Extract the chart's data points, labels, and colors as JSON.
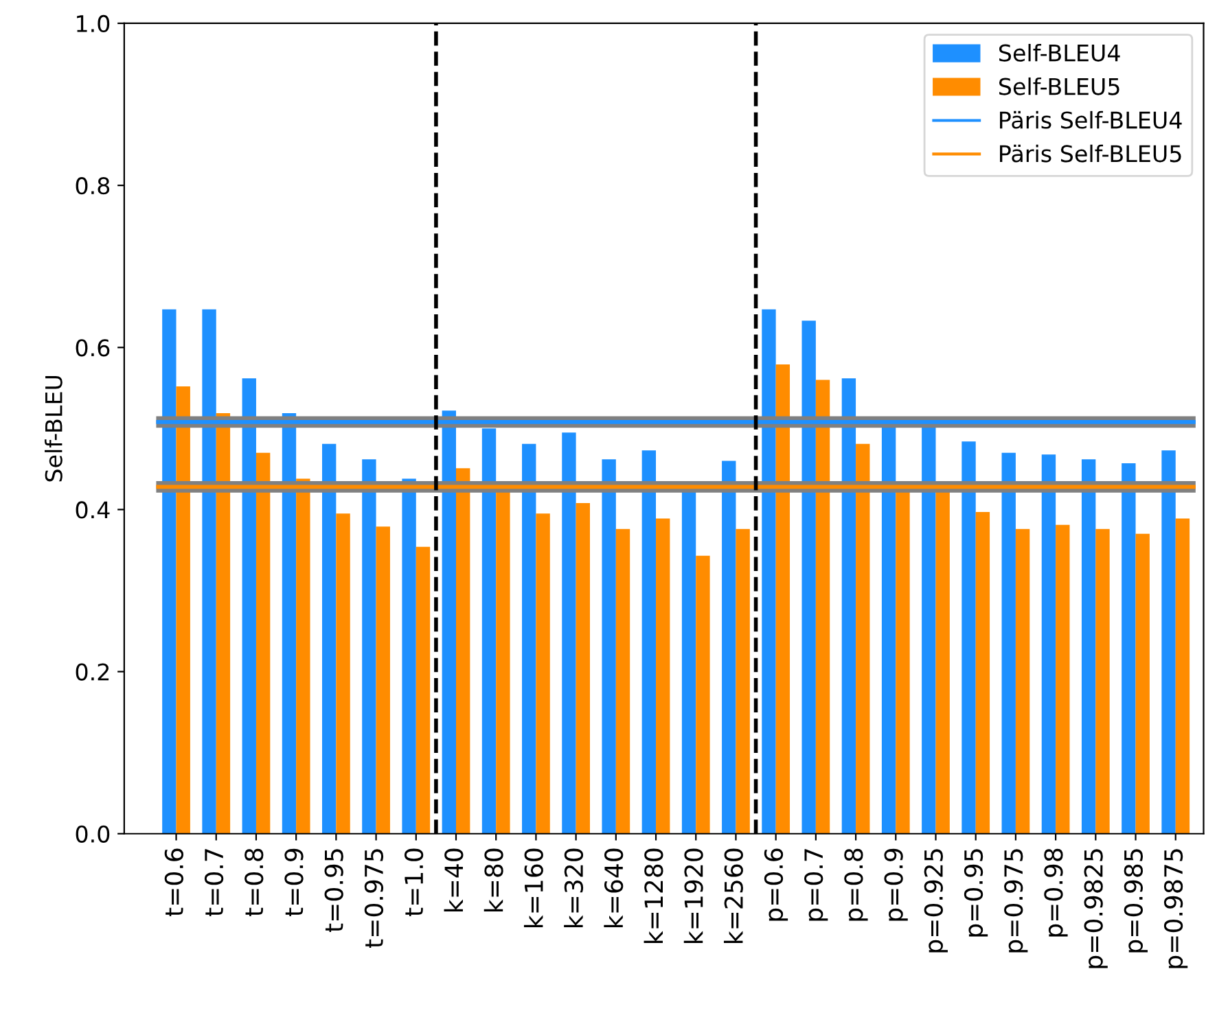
{
  "chart_data": {
    "type": "bar",
    "ylabel": "Self-BLEU",
    "categories": [
      "t=0.6",
      "t=0.7",
      "t=0.8",
      "t=0.9",
      "t=0.95",
      "t=0.975",
      "t=1.0",
      "k=40",
      "k=80",
      "k=160",
      "k=320",
      "k=640",
      "k=1280",
      "k=1920",
      "k=2560",
      "p=0.6",
      "p=0.7",
      "p=0.8",
      "p=0.9",
      "p=0.925",
      "p=0.95",
      "p=0.975",
      "p=0.98",
      "p=0.9825",
      "p=0.985",
      "p=0.9875"
    ],
    "series": [
      {
        "name": "Self-BLEU4",
        "color": "#1e90ff",
        "values": [
          0.647,
          0.647,
          0.562,
          0.519,
          0.481,
          0.462,
          0.438,
          0.522,
          0.5,
          0.481,
          0.495,
          0.462,
          0.473,
          0.425,
          0.46,
          0.647,
          0.633,
          0.562,
          0.505,
          0.505,
          0.484,
          0.47,
          0.468,
          0.462,
          0.457,
          0.473
        ]
      },
      {
        "name": "Self-BLEU5",
        "color": "#ff8c00",
        "values": [
          0.552,
          0.519,
          0.47,
          0.438,
          0.395,
          0.379,
          0.354,
          0.451,
          0.425,
          0.395,
          0.408,
          0.376,
          0.389,
          0.343,
          0.376,
          0.579,
          0.56,
          0.481,
          0.425,
          0.425,
          0.397,
          0.376,
          0.381,
          0.376,
          0.37,
          0.389
        ]
      }
    ],
    "ref_lines": [
      {
        "axis": "y",
        "value": 0.508,
        "color": "#808080",
        "line_style": "solid"
      },
      {
        "axis": "y",
        "value": 0.428,
        "color": "#808080",
        "line_style": "solid"
      },
      {
        "axis": "y",
        "value": 0.508,
        "label": "Päris Self-BLEU4",
        "color": "#1e90ff",
        "line_style": "solid"
      },
      {
        "axis": "y",
        "value": 0.428,
        "label": "Päris Self-BLEU5",
        "color": "#ff8c00",
        "line_style": "solid"
      }
    ],
    "ylim": [
      0,
      1.0
    ],
    "yticks": [
      {
        "value": 0,
        "label": "0.0"
      },
      {
        "value": 0.2,
        "label": "0.2"
      },
      {
        "value": 0.4,
        "label": "0.4"
      },
      {
        "value": 0.6,
        "label": "0.6"
      },
      {
        "value": 0.8,
        "label": "0.8"
      },
      {
        "value": 1.0,
        "label": "1.0"
      }
    ],
    "grid": false,
    "legend": "top right"
  }
}
